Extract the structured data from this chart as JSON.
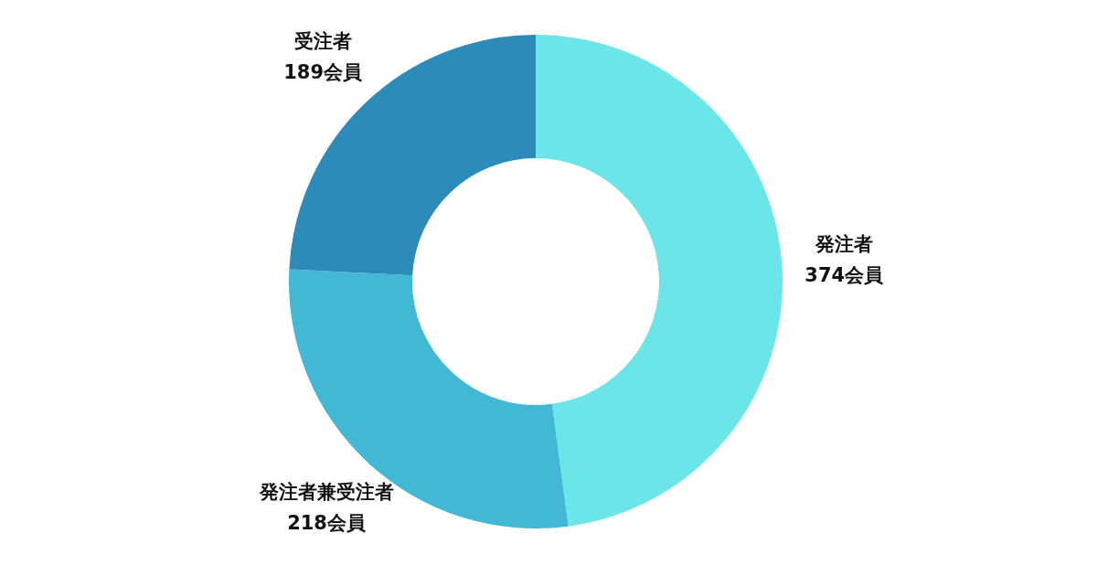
{
  "chart_data": {
    "type": "donut",
    "categories": [
      "発注者",
      "発注者兼受注者",
      "受注者"
    ],
    "values": [
      374,
      218,
      189
    ],
    "value_labels": [
      "374会員",
      "218会員",
      "189会員"
    ],
    "colors": [
      "#6ce5e8",
      "#42b8d5",
      "#2d8bba"
    ],
    "legend": false
  }
}
